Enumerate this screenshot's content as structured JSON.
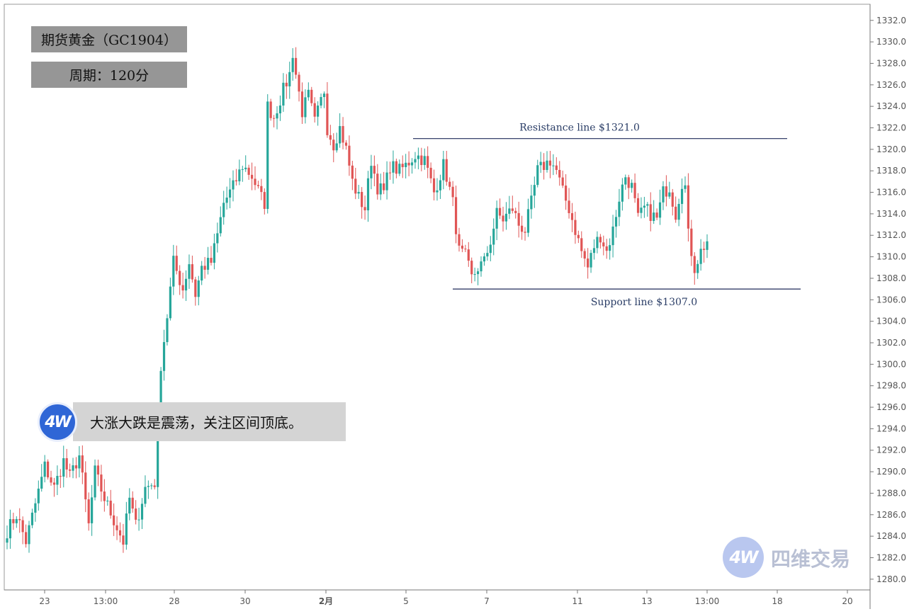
{
  "header": {
    "title": "期货黄金（GC1904）",
    "period": "周期：120分"
  },
  "caption": {
    "text": "大涨大跌是震荡，关注区间顶底。"
  },
  "logo": {
    "badge": "4W",
    "watermark_text": "四维交易"
  },
  "colors": {
    "up": "#26a69a",
    "down": "#e05555",
    "line": "#1f2a5a",
    "text": "#2a3d66",
    "axis": "#555555"
  },
  "chart_data": {
    "type": "candlestick",
    "y_ticks": [
      "1280.0",
      "1282.0",
      "1284.0",
      "1286.0",
      "1288.0",
      "1290.0",
      "1292.0",
      "1294.0",
      "1296.0",
      "1298.0",
      "1300.0",
      "1302.0",
      "1304.0",
      "1306.0",
      "1308.0",
      "1310.0",
      "1312.0",
      "1314.0",
      "1316.0",
      "1318.0",
      "1320.0",
      "1322.0",
      "1324.0",
      "1326.0",
      "1328.0",
      "1330.0",
      "1332.0"
    ],
    "ylim": [
      1279,
      1333.5
    ],
    "x_ticks": [
      "23",
      "13:00",
      "28",
      "30",
      "2月",
      "5",
      "7",
      "11",
      "13",
      "13:00",
      "18",
      "20"
    ],
    "resistance": {
      "label": "Resistance line $1321.0",
      "value": 1321.0
    },
    "support": {
      "label": "Support line $1307.0",
      "value": 1307.0
    },
    "keypoints": [
      [
        0,
        1284.5
      ],
      [
        3,
        1286
      ],
      [
        6,
        1283.5
      ],
      [
        9,
        1287
      ],
      [
        12,
        1290.5
      ],
      [
        15,
        1288.5
      ],
      [
        18,
        1291
      ],
      [
        20,
        1289.5
      ],
      [
        23,
        1291.5
      ],
      [
        26,
        1285
      ],
      [
        28,
        1290
      ],
      [
        31,
        1287.5
      ],
      [
        34,
        1285.5
      ],
      [
        37,
        1283.5
      ],
      [
        39,
        1287.5
      ],
      [
        41,
        1285
      ],
      [
        44,
        1288.5
      ],
      [
        47,
        1289
      ],
      [
        48,
        1295
      ],
      [
        49,
        1300
      ],
      [
        51,
        1304.5
      ],
      [
        53,
        1309.5
      ],
      [
        56,
        1307
      ],
      [
        58,
        1309.5
      ],
      [
        60,
        1306.5
      ],
      [
        62,
        1309
      ],
      [
        65,
        1309.5
      ],
      [
        67,
        1312
      ],
      [
        69,
        1315
      ],
      [
        72,
        1316.5
      ],
      [
        75,
        1318.5
      ],
      [
        78,
        1317.5
      ],
      [
        81,
        1315.5
      ],
      [
        82,
        1315
      ],
      [
        83,
        1324
      ],
      [
        85,
        1323
      ],
      [
        88,
        1325.5
      ],
      [
        90,
        1327
      ],
      [
        91,
        1329
      ],
      [
        92,
        1327
      ],
      [
        94,
        1323.5
      ],
      [
        96,
        1325
      ],
      [
        98,
        1322.5
      ],
      [
        101,
        1325.5
      ],
      [
        102,
        1322
      ],
      [
        104,
        1320.5
      ],
      [
        106,
        1322
      ],
      [
        108,
        1320
      ],
      [
        110,
        1317
      ],
      [
        112,
        1315.5
      ],
      [
        114,
        1314.5
      ],
      [
        116,
        1319
      ],
      [
        118,
        1316.5
      ],
      [
        120,
        1316
      ],
      [
        122,
        1318.5
      ],
      [
        125,
        1318
      ],
      [
        127,
        1318.5
      ],
      [
        130,
        1319.5
      ],
      [
        133,
        1319
      ],
      [
        136,
        1316
      ],
      [
        139,
        1318.5
      ],
      [
        140,
        1317.5
      ],
      [
        142,
        1315
      ],
      [
        144,
        1310.5
      ],
      [
        146,
        1310
      ],
      [
        148,
        1308
      ],
      [
        150,
        1309
      ],
      [
        152,
        1309.5
      ],
      [
        154,
        1311.5
      ],
      [
        156,
        1314
      ],
      [
        158,
        1313.5
      ],
      [
        161,
        1314.5
      ],
      [
        163,
        1313
      ],
      [
        165,
        1312.5
      ],
      [
        167,
        1315
      ],
      [
        169,
        1318
      ],
      [
        171,
        1318.5
      ],
      [
        173,
        1319
      ],
      [
        175,
        1318
      ],
      [
        177,
        1316
      ],
      [
        179,
        1314.5
      ],
      [
        181,
        1312.5
      ],
      [
        183,
        1310.5
      ],
      [
        185,
        1309
      ],
      [
        187,
        1311
      ],
      [
        189,
        1312
      ],
      [
        191,
        1310.5
      ],
      [
        193,
        1312.5
      ],
      [
        195,
        1315.5
      ],
      [
        197,
        1317.5
      ],
      [
        199,
        1316.5
      ],
      [
        201,
        1313.5
      ],
      [
        203,
        1314.5
      ],
      [
        205,
        1314
      ],
      [
        207,
        1313.5
      ],
      [
        209,
        1316
      ],
      [
        211,
        1316.5
      ],
      [
        213,
        1314
      ],
      [
        215,
        1317
      ],
      [
        216,
        1316.5
      ],
      [
        217,
        1312
      ],
      [
        219,
        1309
      ],
      [
        221,
        1310.5
      ],
      [
        223,
        1311.5
      ]
    ]
  }
}
